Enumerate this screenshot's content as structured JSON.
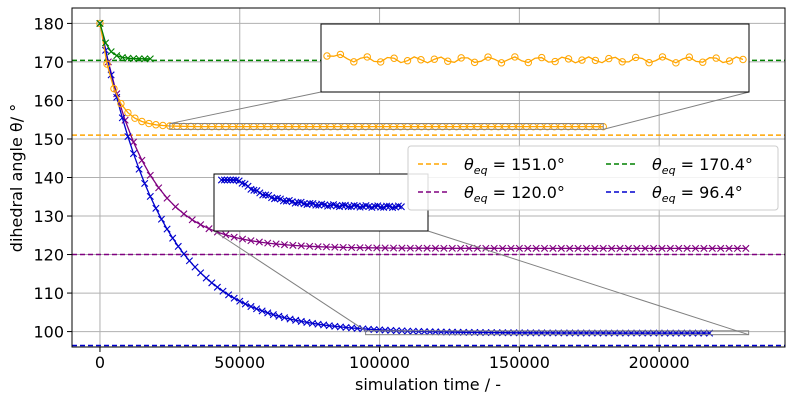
{
  "chart_data": {
    "type": "line",
    "title": "",
    "xlabel": "simulation time / -",
    "ylabel": "dihedral angle θ/ °",
    "xlim": [
      -10000,
      245000
    ],
    "ylim": [
      96,
      184
    ],
    "grid": true,
    "xticks": [
      0,
      50000,
      100000,
      150000,
      200000
    ],
    "xtick_labels": [
      "0",
      "50000",
      "100000",
      "150000",
      "200000"
    ],
    "yticks": [
      100,
      110,
      120,
      130,
      140,
      150,
      160,
      170,
      180
    ],
    "ytick_labels": [
      "100",
      "110",
      "120",
      "130",
      "140",
      "150",
      "160",
      "170",
      "180"
    ],
    "legend": {
      "placement": "center-right",
      "entries": [
        {
          "theta": "θ",
          "sub": "eq",
          "text": " = 151.0°",
          "color": "#ffa500"
        },
        {
          "theta": "θ",
          "sub": "eq",
          "text": " = 120.0°",
          "color": "#800080"
        },
        {
          "theta": "θ",
          "sub": "eq",
          "text": " = 170.4°",
          "color": "#008000"
        },
        {
          "theta": "θ",
          "sub": "eq",
          "text": " = 96.4°",
          "color": "#0000cd"
        }
      ]
    },
    "reference_lines": [
      {
        "name": "theta_eq_151",
        "y": 151.0,
        "color": "#ffa500"
      },
      {
        "name": "theta_eq_120",
        "y": 120.0,
        "color": "#800080"
      },
      {
        "name": "theta_eq_170",
        "y": 170.4,
        "color": "#008000"
      },
      {
        "name": "theta_eq_96",
        "y": 96.4,
        "color": "#0000cd"
      }
    ],
    "series": [
      {
        "name": "orange-151",
        "color": "#ffa500",
        "x_start": 0,
        "x_end": 180000,
        "dx": 2500,
        "y_start": 180,
        "y_end": 153.2,
        "tau": 5000,
        "marker": "o"
      },
      {
        "name": "purple-120",
        "color": "#800080",
        "x_start": 0,
        "x_end": 233000,
        "dx": 3000,
        "y_start": 180,
        "y_end": 121.6,
        "tau": 16000,
        "marker": "x"
      },
      {
        "name": "green-170",
        "color": "#008000",
        "x_start": 0,
        "x_end": 18000,
        "dx": 2000,
        "y_start": 180,
        "y_end": 170.8,
        "tau": 2500,
        "marker": "x"
      },
      {
        "name": "blue-96",
        "color": "#0000cd",
        "x_start": 0,
        "x_end": 218000,
        "dx": 2000,
        "y_start": 180,
        "y_end": 99.6,
        "tau": 22000,
        "marker": "x"
      }
    ],
    "insets": [
      {
        "name": "orange-zoom-inset",
        "region_x": [
          25000,
          180000
        ],
        "region_y": [
          152.5,
          154.0
        ],
        "content": "orange-151"
      },
      {
        "name": "blue-zoom-inset",
        "region_x": [
          95000,
          232000
        ],
        "region_y": [
          99.2,
          100.2
        ],
        "content": "blue-96"
      }
    ]
  }
}
